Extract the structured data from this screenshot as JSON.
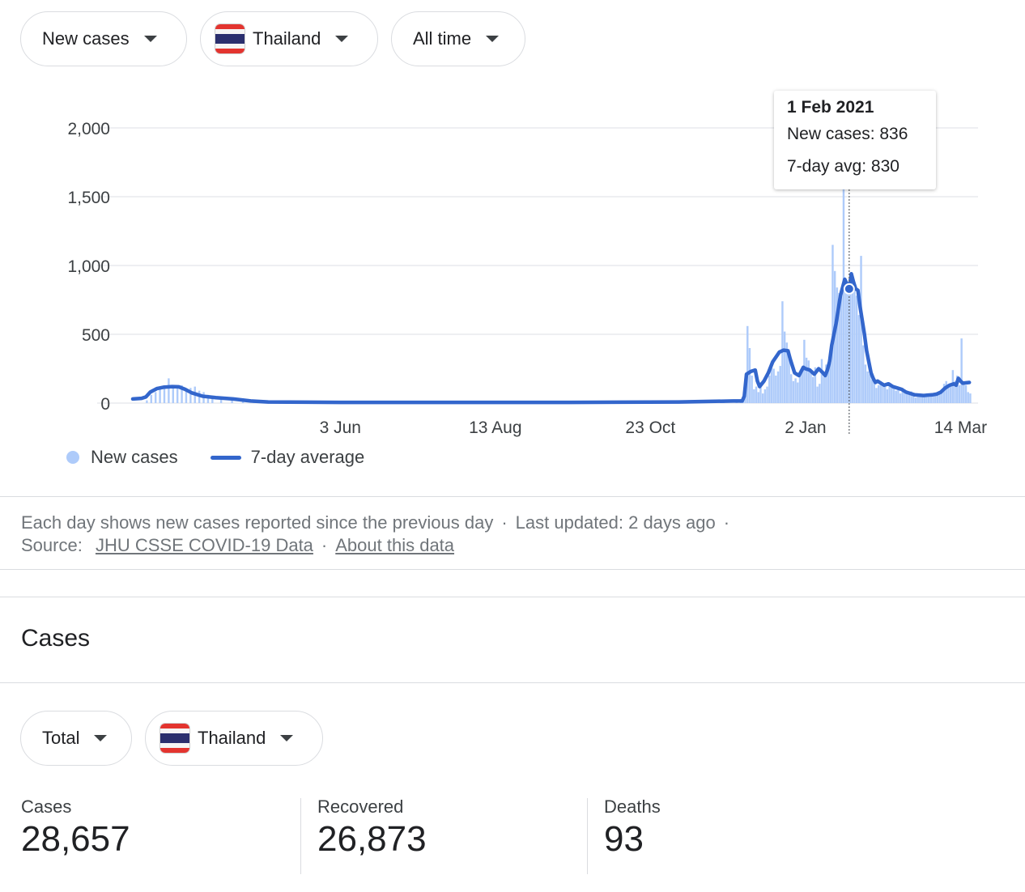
{
  "filters": {
    "metric": "New cases",
    "country": "Thailand",
    "range": "All time"
  },
  "tooltip": {
    "date": "1 Feb 2021",
    "new_cases": "New cases: 836",
    "avg": "7-day avg: 830"
  },
  "legend": {
    "new_cases": "New cases",
    "avg": "7-day average"
  },
  "colors": {
    "bars": "#aecbfa",
    "line": "#3366cc",
    "grid": "#e8eaed"
  },
  "chart_data": {
    "type": "bar",
    "ylim": [
      0,
      2000
    ],
    "yticks": [
      "0",
      "500",
      "1,000",
      "1,500",
      "2,000"
    ],
    "ytick_values": [
      0,
      500,
      1000,
      1500,
      2000
    ],
    "xtick_labels": [
      "3 Jun",
      "13 Aug",
      "23 Oct",
      "2 Jan",
      "14 Mar"
    ],
    "xtick_days": [
      95,
      166,
      237,
      308,
      379
    ],
    "x_days_total": 387,
    "series": [
      {
        "name": "New cases",
        "kind": "bar",
        "points": [
          [
            6,
            20
          ],
          [
            8,
            60
          ],
          [
            10,
            80
          ],
          [
            12,
            100
          ],
          [
            14,
            120
          ],
          [
            16,
            180
          ],
          [
            18,
            120
          ],
          [
            20,
            110
          ],
          [
            22,
            130
          ],
          [
            24,
            100
          ],
          [
            26,
            110
          ],
          [
            28,
            120
          ],
          [
            30,
            90
          ],
          [
            32,
            80
          ],
          [
            34,
            60
          ],
          [
            36,
            50
          ],
          [
            40,
            40
          ],
          [
            45,
            30
          ],
          [
            50,
            20
          ],
          [
            55,
            15
          ],
          [
            60,
            10
          ],
          [
            70,
            5
          ],
          [
            80,
            3
          ],
          [
            100,
            3
          ],
          [
            150,
            5
          ],
          [
            200,
            5
          ],
          [
            250,
            5
          ],
          [
            270,
            10
          ],
          [
            276,
            20
          ],
          [
            278,
            30
          ],
          [
            279,
            50
          ],
          [
            280,
            110
          ],
          [
            281,
            560
          ],
          [
            282,
            400
          ],
          [
            283,
            200
          ],
          [
            284,
            100
          ],
          [
            285,
            120
          ],
          [
            286,
            80
          ],
          [
            287,
            150
          ],
          [
            288,
            70
          ],
          [
            289,
            100
          ],
          [
            290,
            120
          ],
          [
            291,
            200
          ],
          [
            292,
            280
          ],
          [
            293,
            250
          ],
          [
            294,
            200
          ],
          [
            295,
            230
          ],
          [
            296,
            270
          ],
          [
            297,
            740
          ],
          [
            298,
            520
          ],
          [
            299,
            440
          ],
          [
            300,
            360
          ],
          [
            301,
            210
          ],
          [
            302,
            160
          ],
          [
            303,
            180
          ],
          [
            304,
            150
          ],
          [
            305,
            200
          ],
          [
            306,
            230
          ],
          [
            307,
            460
          ],
          [
            308,
            330
          ],
          [
            309,
            310
          ],
          [
            310,
            230
          ],
          [
            311,
            190
          ],
          [
            312,
            260
          ],
          [
            313,
            120
          ],
          [
            314,
            140
          ],
          [
            315,
            320
          ],
          [
            316,
            190
          ],
          [
            317,
            280
          ],
          [
            318,
            250
          ],
          [
            319,
            290
          ],
          [
            320,
            1150
          ],
          [
            321,
            960
          ],
          [
            322,
            840
          ],
          [
            323,
            800
          ],
          [
            324,
            810
          ],
          [
            325,
            1600
          ],
          [
            326,
            900
          ],
          [
            327,
            820
          ],
          [
            328,
            836
          ],
          [
            329,
            930
          ],
          [
            330,
            880
          ],
          [
            331,
            780
          ],
          [
            332,
            640
          ],
          [
            333,
            1070
          ],
          [
            334,
            420
          ],
          [
            335,
            280
          ],
          [
            336,
            230
          ],
          [
            337,
            210
          ],
          [
            338,
            170
          ],
          [
            339,
            150
          ],
          [
            340,
            110
          ],
          [
            341,
            130
          ],
          [
            342,
            160
          ],
          [
            343,
            140
          ],
          [
            344,
            120
          ],
          [
            345,
            100
          ],
          [
            346,
            140
          ],
          [
            347,
            130
          ],
          [
            348,
            110
          ],
          [
            349,
            90
          ],
          [
            350,
            95
          ],
          [
            351,
            70
          ],
          [
            352,
            110
          ],
          [
            353,
            80
          ],
          [
            354,
            75
          ],
          [
            355,
            60
          ],
          [
            356,
            85
          ],
          [
            357,
            55
          ],
          [
            358,
            40
          ],
          [
            359,
            45
          ],
          [
            360,
            60
          ],
          [
            361,
            50
          ],
          [
            362,
            55
          ],
          [
            363,
            60
          ],
          [
            364,
            45
          ],
          [
            365,
            50
          ],
          [
            366,
            55
          ],
          [
            367,
            60
          ],
          [
            368,
            70
          ],
          [
            369,
            80
          ],
          [
            370,
            100
          ],
          [
            371,
            140
          ],
          [
            372,
            160
          ],
          [
            373,
            110
          ],
          [
            374,
            140
          ],
          [
            375,
            240
          ],
          [
            376,
            160
          ],
          [
            377,
            200
          ],
          [
            378,
            130
          ],
          [
            379,
            470
          ],
          [
            380,
            150
          ],
          [
            381,
            130
          ],
          [
            382,
            80
          ],
          [
            383,
            70
          ]
        ]
      },
      {
        "name": "7-day average",
        "kind": "line",
        "points": [
          [
            0,
            30
          ],
          [
            4,
            35
          ],
          [
            6,
            45
          ],
          [
            8,
            80
          ],
          [
            11,
            105
          ],
          [
            14,
            115
          ],
          [
            18,
            120
          ],
          [
            21,
            118
          ],
          [
            24,
            100
          ],
          [
            27,
            75
          ],
          [
            32,
            50
          ],
          [
            38,
            40
          ],
          [
            46,
            30
          ],
          [
            54,
            15
          ],
          [
            62,
            8
          ],
          [
            95,
            5
          ],
          [
            150,
            5
          ],
          [
            200,
            5
          ],
          [
            250,
            8
          ],
          [
            275,
            15
          ],
          [
            279,
            15
          ],
          [
            280,
            50
          ],
          [
            281,
            210
          ],
          [
            283,
            230
          ],
          [
            285,
            240
          ],
          [
            286,
            160
          ],
          [
            287,
            120
          ],
          [
            289,
            160
          ],
          [
            291,
            220
          ],
          [
            293,
            300
          ],
          [
            296,
            370
          ],
          [
            298,
            385
          ],
          [
            300,
            380
          ],
          [
            301,
            320
          ],
          [
            302,
            270
          ],
          [
            303,
            220
          ],
          [
            304,
            210
          ],
          [
            305,
            200
          ],
          [
            306,
            230
          ],
          [
            307,
            260
          ],
          [
            308,
            250
          ],
          [
            310,
            240
          ],
          [
            312,
            210
          ],
          [
            314,
            250
          ],
          [
            316,
            220
          ],
          [
            317,
            200
          ],
          [
            318,
            240
          ],
          [
            319,
            300
          ],
          [
            320,
            420
          ],
          [
            322,
            580
          ],
          [
            324,
            780
          ],
          [
            326,
            900
          ],
          [
            328,
            830
          ],
          [
            329,
            940
          ],
          [
            330,
            880
          ],
          [
            331,
            830
          ],
          [
            332,
            820
          ],
          [
            333,
            700
          ],
          [
            334,
            600
          ],
          [
            335,
            500
          ],
          [
            336,
            380
          ],
          [
            337,
            300
          ],
          [
            338,
            220
          ],
          [
            339,
            180
          ],
          [
            340,
            150
          ],
          [
            341,
            160
          ],
          [
            342,
            150
          ],
          [
            344,
            130
          ],
          [
            346,
            140
          ],
          [
            348,
            120
          ],
          [
            350,
            110
          ],
          [
            352,
            100
          ],
          [
            354,
            80
          ],
          [
            356,
            70
          ],
          [
            358,
            60
          ],
          [
            362,
            55
          ],
          [
            366,
            60
          ],
          [
            368,
            65
          ],
          [
            370,
            80
          ],
          [
            372,
            110
          ],
          [
            374,
            130
          ],
          [
            376,
            140
          ],
          [
            377,
            130
          ],
          [
            378,
            180
          ],
          [
            379,
            160
          ],
          [
            380,
            145
          ],
          [
            383,
            150
          ]
        ]
      }
    ],
    "highlight_day": 328
  },
  "footnote": {
    "text1": "Each day shows new cases reported since the previous day",
    "sep": "·",
    "updated": "Last updated: 2 days ago",
    "source_label": "Source:",
    "source_link": "JHU CSSE COVID-19 Data",
    "about_link": "About this data"
  },
  "cases_section": {
    "title": "Cases",
    "filter_type": "Total",
    "filter_country": "Thailand",
    "stats": [
      {
        "label": "Cases",
        "value": "28,657"
      },
      {
        "label": "Recovered",
        "value": "26,873"
      },
      {
        "label": "Deaths",
        "value": "93"
      }
    ]
  }
}
